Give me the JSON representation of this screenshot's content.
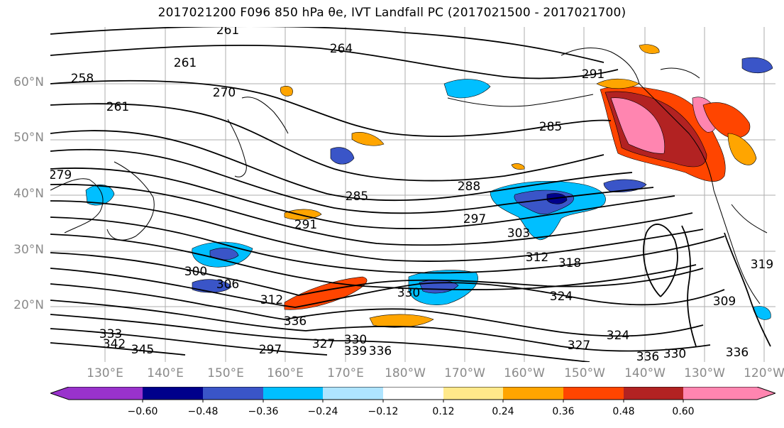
{
  "title": "2017021200 F096 850 hPa θe, IVT Landfall PC (2017021500 - 2017021700)",
  "lat_labels": [
    "60°N",
    "50°N",
    "40°N",
    "30°N",
    "20°N"
  ],
  "lon_labels": [
    "130°E",
    "140°E",
    "150°E",
    "160°E",
    "170°E",
    "180°W",
    "170°W",
    "160°W",
    "150°W",
    "140°W",
    "130°W",
    "120°W"
  ],
  "contour_labels": [
    "261",
    "264",
    "261",
    "258",
    "270",
    "261",
    "285",
    "291",
    "288",
    "285",
    "297",
    "291",
    "303",
    "312",
    "300",
    "306",
    "312",
    "330",
    "324",
    "318",
    "309",
    "336",
    "333",
    "342",
    "345",
    "327",
    "330",
    "339",
    "336",
    "327",
    "324",
    "336",
    "330",
    "336",
    "319",
    "279",
    "297"
  ],
  "colorbar": {
    "tick_labels": [
      "−0.60",
      "−0.48",
      "−0.36",
      "−0.24",
      "−0.12",
      "0.12",
      "0.24",
      "0.36",
      "0.48",
      "0.60"
    ],
    "colors": [
      "#9932cc",
      "#00008b",
      "#3a55c8",
      "#00bfff",
      "#aee4ff",
      "#ffffff",
      "#ffe98a",
      "#ffa500",
      "#ff4500",
      "#b22222",
      "#ff85b0"
    ]
  }
}
